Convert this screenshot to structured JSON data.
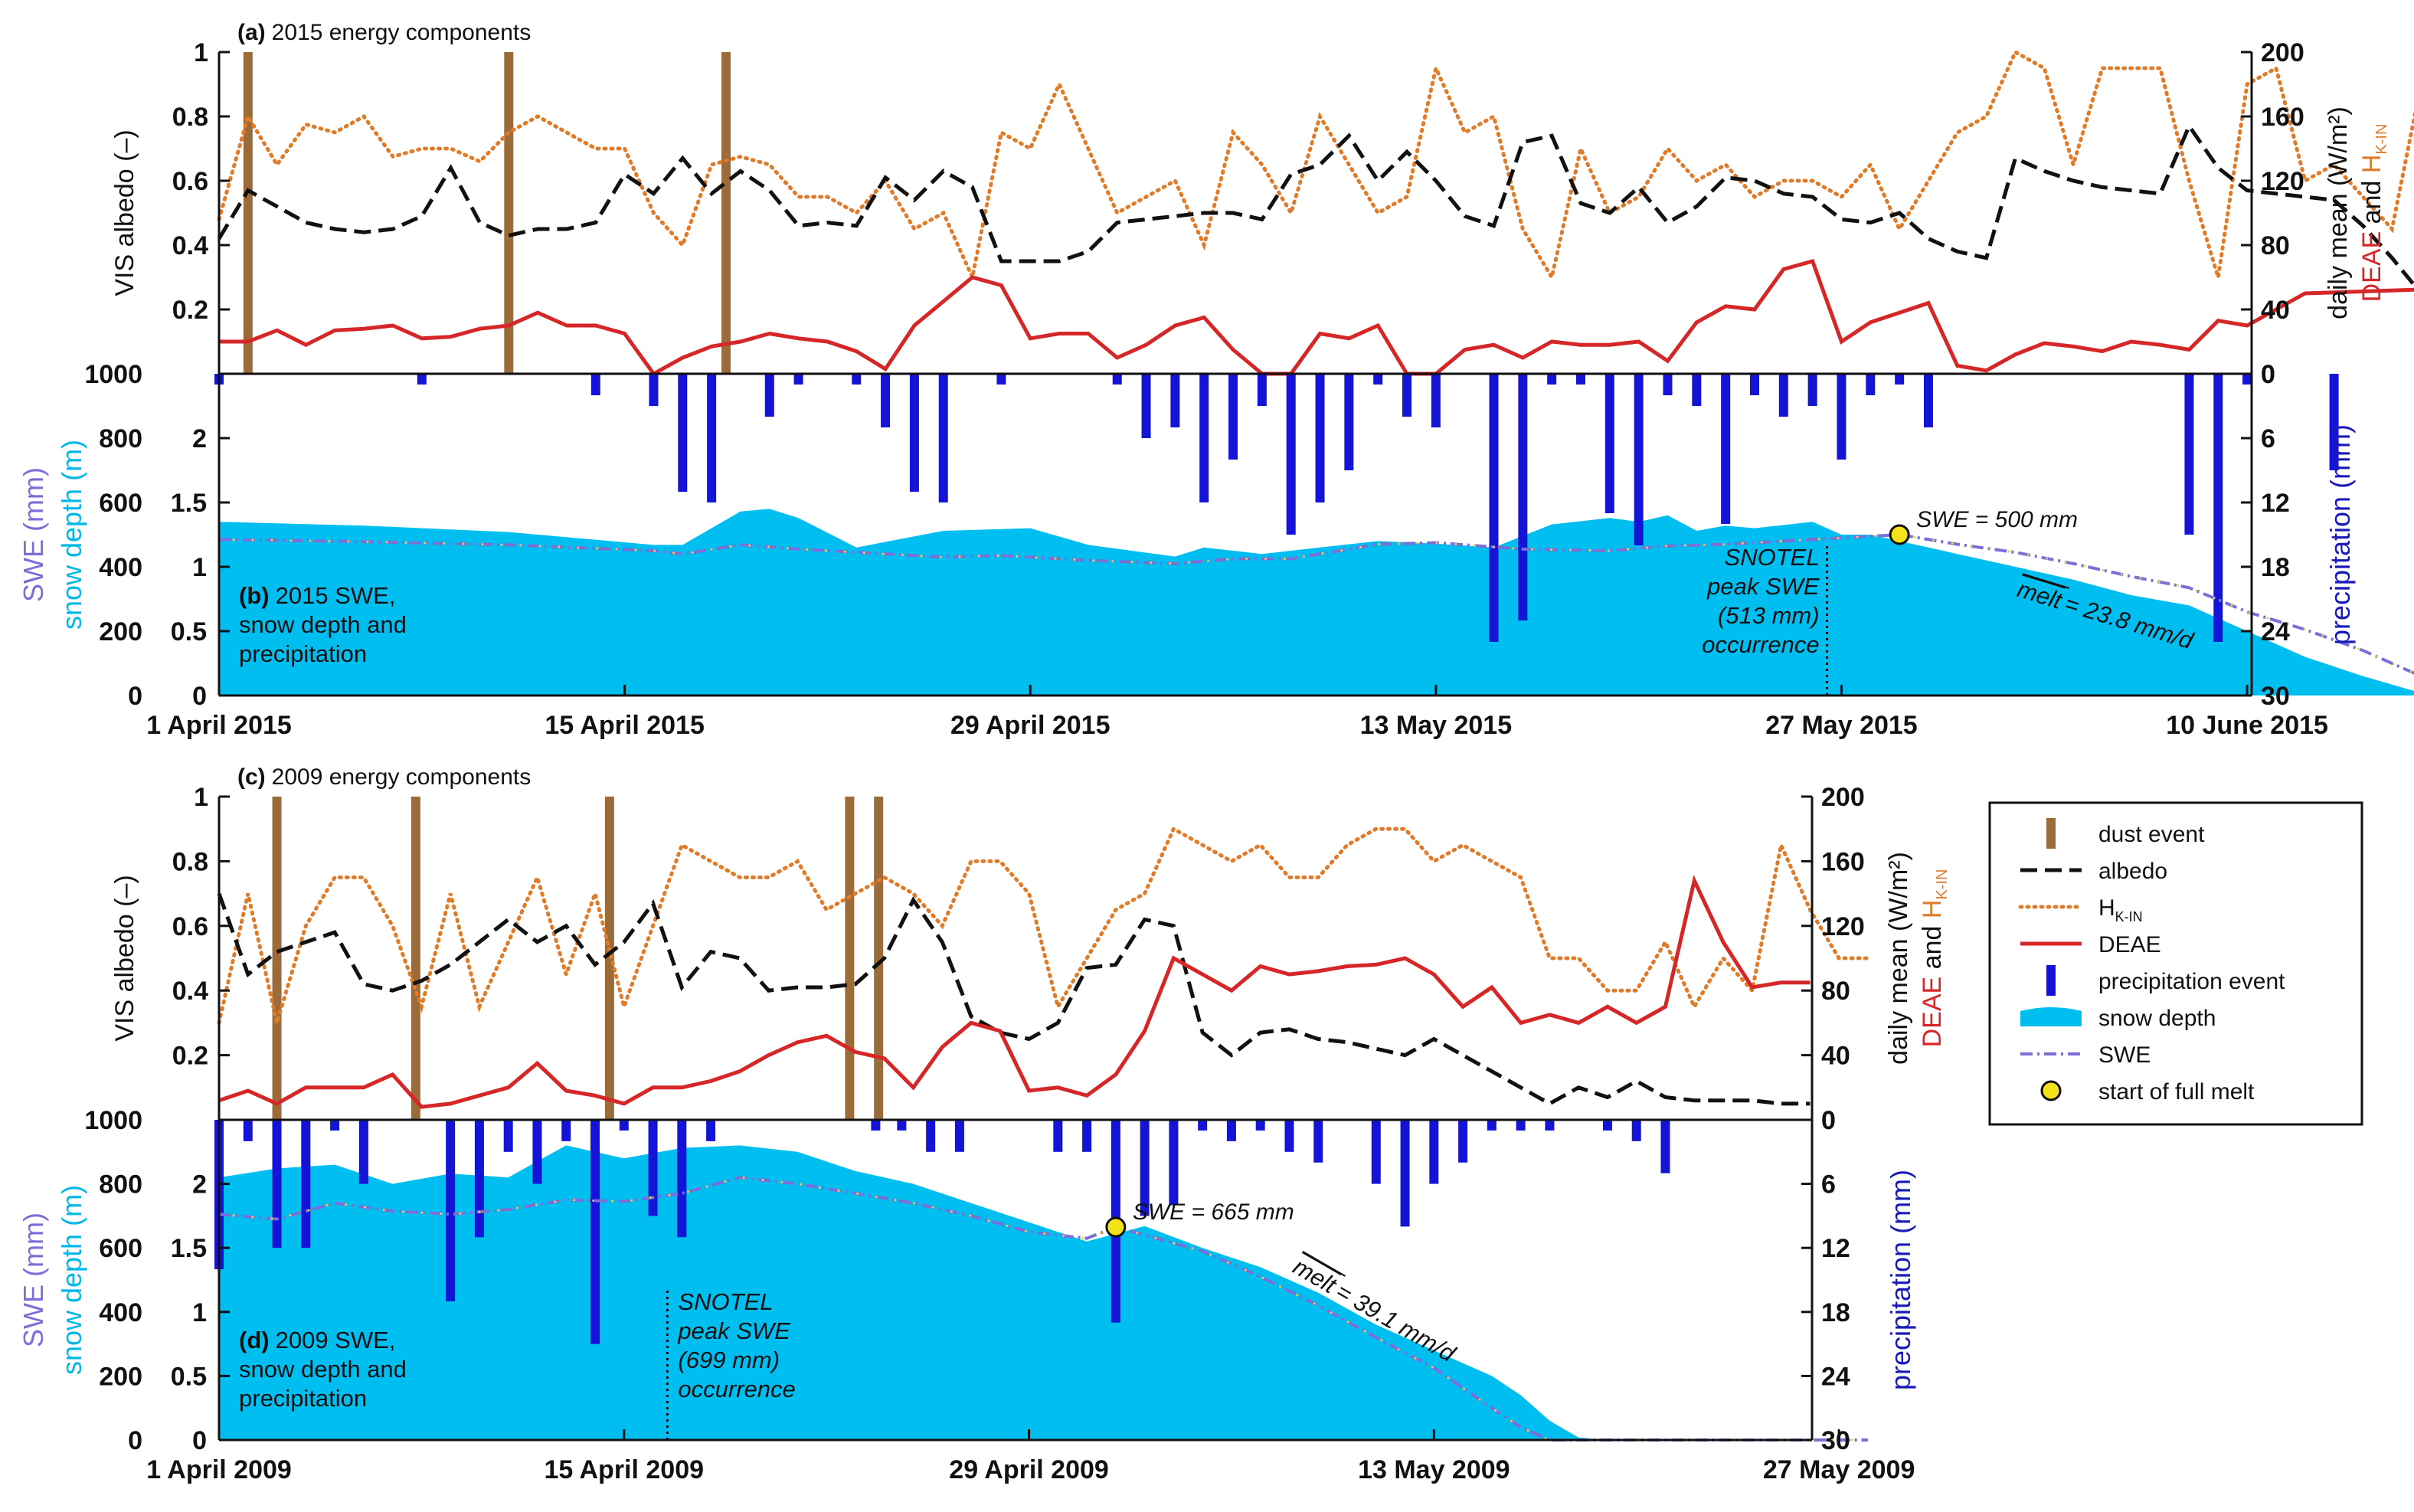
{
  "chart_data": [
    {
      "type": "line",
      "panel": "a",
      "title_letter": "(a)",
      "title": "2015 energy components",
      "ylabel_left": "VIS albedo (–)",
      "ylabel_right": "daily mean (W/m²)",
      "ylabel_right2_parts": [
        "DEAE",
        " and ",
        "H",
        "K-IN"
      ],
      "ylim_left": [
        0,
        1
      ],
      "ylim_right": [
        0,
        200
      ],
      "yticks_left": [
        "0",
        "0.2",
        "0.4",
        "0.6",
        "0.8",
        "1"
      ],
      "yticks_right": [
        "0",
        "40",
        "80",
        "120",
        "160",
        "200"
      ],
      "day_range": [
        0,
        77
      ],
      "dust_days": [
        1,
        10,
        17.5
      ],
      "albedo": [
        0.42,
        0.57,
        0.52,
        0.47,
        0.45,
        0.44,
        0.45,
        0.49,
        0.64,
        0.47,
        0.43,
        0.45,
        0.45,
        0.47,
        0.62,
        0.56,
        0.67,
        0.56,
        0.63,
        0.57,
        0.46,
        0.47,
        0.46,
        0.61,
        0.54,
        0.63,
        0.58,
        0.35,
        0.35,
        0.35,
        0.38,
        0.47,
        0.48,
        0.49,
        0.5,
        0.5,
        0.48,
        0.62,
        0.65,
        0.74,
        0.6,
        0.69,
        0.6,
        0.49,
        0.46,
        0.72,
        0.74,
        0.53,
        0.5,
        0.58,
        0.47,
        0.52,
        0.61,
        0.6,
        0.56,
        0.55,
        0.48,
        0.47,
        0.5,
        0.42,
        0.38,
        0.36,
        0.67,
        0.63,
        0.6,
        0.58,
        0.57,
        0.56,
        0.77,
        0.64,
        0.57,
        0.56,
        0.55,
        0.54,
        0.46,
        0.36,
        0.25,
        0.24
      ],
      "hkin": [
        96,
        160,
        130,
        155,
        150,
        160,
        135,
        140,
        140,
        132,
        150,
        160,
        150,
        140,
        140,
        100,
        80,
        130,
        135,
        130,
        110,
        110,
        100,
        120,
        90,
        100,
        60,
        150,
        140,
        180,
        140,
        100,
        110,
        120,
        80,
        150,
        130,
        100,
        160,
        130,
        100,
        110,
        190,
        150,
        160,
        90,
        60,
        140,
        100,
        110,
        140,
        120,
        130,
        110,
        120,
        120,
        110,
        130,
        90,
        120,
        150,
        160,
        200,
        190,
        130,
        190,
        190,
        190,
        120,
        60,
        180,
        190,
        120,
        130,
        110,
        90,
        180,
        125,
        140
      ],
      "deae": [
        20,
        20,
        27,
        18,
        27,
        28,
        30,
        22,
        23,
        28,
        30,
        38,
        30,
        30,
        25,
        0,
        10,
        17,
        20,
        25,
        22,
        20,
        14,
        3,
        30,
        45,
        60,
        55,
        22,
        25,
        25,
        10,
        18,
        30,
        35,
        15,
        0,
        0,
        25,
        22,
        30,
        0,
        0,
        15,
        18,
        10,
        20,
        18,
        18,
        20,
        8,
        32,
        42,
        40,
        65,
        70,
        20,
        32,
        38,
        44,
        5,
        2,
        12,
        19,
        17,
        14,
        20,
        18,
        15,
        33,
        30,
        40,
        50,
        53
      ],
      "deae_days": [
        0,
        1,
        2,
        3,
        4,
        5,
        6,
        7,
        8,
        9,
        10,
        11,
        12,
        13,
        14,
        15,
        16,
        17,
        18,
        19,
        20,
        21,
        22,
        23,
        24,
        25,
        26,
        27,
        28,
        29,
        30,
        31,
        32,
        33,
        34,
        35,
        36,
        37,
        38,
        39,
        40,
        41,
        42,
        43,
        44,
        45,
        46,
        47,
        48,
        49,
        50,
        51,
        52,
        53,
        54,
        55,
        56,
        57,
        58,
        59,
        60,
        61,
        62,
        63,
        64,
        65,
        66,
        67,
        68,
        69,
        70,
        71,
        72,
        77
      ]
    },
    {
      "type": "area",
      "panel": "b",
      "caption_letter": "(b)",
      "caption_lines": [
        "2015 SWE,",
        "snow depth and",
        "precipitation"
      ],
      "ylabel_swe": "SWE (mm)",
      "ylabel_depth": "snow depth (m)",
      "ylabel_precip": "precipitation (mm)",
      "ylim_swe": [
        0,
        1000
      ],
      "ylim_depth": [
        0,
        2.5
      ],
      "ylim_precip": [
        30,
        0
      ],
      "yticks_swe": [
        "0",
        "200",
        "400",
        "600",
        "800",
        "1000"
      ],
      "yticks_depth": [
        "0",
        "0.5",
        "1",
        "1.5",
        "2"
      ],
      "yticks_precip": [
        "0",
        "6",
        "12",
        "18",
        "24",
        "30"
      ],
      "xticks": [
        "1 April 2015",
        "15 April 2015",
        "29 April 2015",
        "13 May 2015",
        "27 May 2015",
        "10 June 2015"
      ],
      "xtick_days": [
        0,
        14,
        28,
        42,
        56,
        70
      ],
      "snow_depth_days": [
        0,
        5,
        10,
        15,
        16,
        18,
        19,
        20,
        22,
        25,
        28,
        30,
        33,
        34,
        36,
        38,
        40,
        42,
        44,
        46,
        48,
        49,
        50,
        51,
        52,
        53,
        55,
        56,
        57,
        58,
        60,
        62,
        64,
        66,
        68,
        70,
        72,
        74,
        76,
        77
      ],
      "snow_depth_m": [
        1.35,
        1.32,
        1.27,
        1.17,
        1.17,
        1.43,
        1.45,
        1.38,
        1.15,
        1.28,
        1.3,
        1.17,
        1.08,
        1.15,
        1.1,
        1.15,
        1.2,
        1.18,
        1.15,
        1.33,
        1.38,
        1.35,
        1.4,
        1.28,
        1.32,
        1.3,
        1.35,
        1.25,
        1.25,
        1.2,
        1.1,
        1.0,
        0.9,
        0.78,
        0.7,
        0.5,
        0.3,
        0.15,
        0.02,
        0.0
      ],
      "swe_days": [
        0,
        5,
        10,
        15,
        16,
        18,
        20,
        22,
        25,
        27,
        30,
        33,
        35,
        37,
        40,
        42,
        45,
        48,
        50,
        52,
        54,
        56,
        57,
        58,
        60,
        62,
        64,
        66,
        68,
        70,
        72,
        74,
        76,
        77
      ],
      "swe_mm": [
        485,
        478,
        468,
        450,
        440,
        468,
        455,
        445,
        430,
        435,
        420,
        410,
        425,
        425,
        470,
        475,
        455,
        450,
        465,
        470,
        480,
        490,
        495,
        500,
        470,
        445,
        410,
        370,
        335,
        260,
        205,
        140,
        60,
        0
      ],
      "precip_days": [
        0,
        7,
        13,
        15,
        16,
        17,
        19,
        20,
        22,
        23,
        24,
        25,
        27,
        31,
        32,
        33,
        34,
        35,
        36,
        37,
        38,
        39,
        40,
        41,
        42,
        44,
        45,
        46,
        47,
        48,
        49,
        50,
        51,
        52,
        53,
        54,
        55,
        56,
        57,
        58,
        59,
        68,
        69,
        70,
        73,
        78
      ],
      "precip_mm": [
        1,
        1,
        2,
        3,
        11,
        12,
        4,
        1,
        1,
        5,
        11,
        12,
        1,
        1,
        6,
        5,
        12,
        8,
        3,
        15,
        12,
        9,
        1,
        4,
        5,
        25,
        23,
        1,
        1,
        13,
        16,
        2,
        3,
        14,
        2,
        4,
        3,
        8,
        2,
        1,
        5,
        15,
        25,
        1,
        9,
        2
      ],
      "swe_marker_day": 58,
      "swe_marker_value": 500,
      "swe_marker_label": "SWE = 500 mm",
      "peak_day": 55.5,
      "peak_lines": [
        "SNOTEL",
        "peak SWE",
        "(513 mm)",
        "occurrence"
      ],
      "melt_label": "melt",
      "melt_value": "= 23.8 mm/d"
    },
    {
      "type": "line",
      "panel": "c",
      "title_letter": "(c)",
      "title": "2009 energy components",
      "ylabel_left": "VIS albedo (–)",
      "ylabel_right": "daily mean (W/m²)",
      "ylabel_right2_parts": [
        "DEAE",
        " and ",
        "H",
        "K-IN"
      ],
      "ylim_left": [
        0,
        1
      ],
      "ylim_right": [
        0,
        200
      ],
      "yticks_left": [
        "0",
        "0.2",
        "0.4",
        "0.6",
        "0.8",
        "1"
      ],
      "yticks_right": [
        "0",
        "40",
        "80",
        "120",
        "160",
        "200"
      ],
      "day_range": [
        0,
        57
      ],
      "dust_days": [
        2,
        6.8,
        13.5,
        21.8,
        22.8
      ],
      "albedo": [
        0.7,
        0.45,
        0.52,
        0.55,
        0.58,
        0.42,
        0.4,
        0.43,
        0.48,
        0.55,
        0.62,
        0.55,
        0.6,
        0.48,
        0.55,
        0.67,
        0.41,
        0.52,
        0.5,
        0.4,
        0.41,
        0.41,
        0.42,
        0.5,
        0.68,
        0.55,
        0.32,
        0.27,
        0.25,
        0.3,
        0.47,
        0.48,
        0.62,
        0.6,
        0.27,
        0.2,
        0.27,
        0.28,
        0.25,
        0.24,
        0.22,
        0.2,
        0.25,
        0.2,
        0.15,
        0.1,
        0.05,
        0.1,
        0.07,
        0.12,
        0.07,
        0.06,
        0.06,
        0.06,
        0.05,
        0.05
      ],
      "hkin": [
        60,
        140,
        60,
        120,
        150,
        150,
        120,
        70,
        140,
        70,
        110,
        150,
        90,
        140,
        70,
        120,
        170,
        160,
        150,
        150,
        160,
        130,
        140,
        150,
        140,
        120,
        160,
        160,
        140,
        70,
        100,
        130,
        140,
        180,
        170,
        160,
        170,
        150,
        150,
        170,
        180,
        180,
        160,
        170,
        160,
        150,
        100,
        100,
        80,
        80,
        110,
        70,
        100,
        80,
        170,
        130,
        100,
        100
      ],
      "deae": [
        12,
        18,
        10,
        20,
        20,
        20,
        28,
        8,
        10,
        15,
        20,
        35,
        18,
        15,
        10,
        20,
        20,
        24,
        30,
        40,
        48,
        52,
        42,
        38,
        20,
        45,
        60,
        55,
        18,
        20,
        15,
        28,
        55,
        100,
        90,
        80,
        95,
        90,
        92,
        95,
        96,
        100,
        90,
        70,
        82,
        60,
        65,
        60,
        70,
        60,
        70,
        148,
        110,
        82,
        85,
        85
      ],
      "deae_days": [
        0,
        1,
        2,
        3,
        4,
        5,
        6,
        7,
        8,
        9,
        10,
        11,
        12,
        13,
        14,
        15,
        16,
        17,
        18,
        19,
        20,
        21,
        22,
        23,
        24,
        25,
        26,
        27,
        28,
        29,
        30,
        31,
        32,
        33,
        34,
        35,
        36,
        37,
        38,
        39,
        40,
        41,
        42,
        43,
        44,
        45,
        46,
        47,
        48,
        49,
        50,
        51,
        52,
        53,
        54,
        55
      ]
    },
    {
      "type": "area",
      "panel": "d",
      "caption_letter": "(d)",
      "caption_lines": [
        "2009 SWE,",
        "snow depth and",
        "precipitation"
      ],
      "ylabel_swe": "SWE (mm)",
      "ylabel_depth": "snow depth (m)",
      "ylabel_precip": "precipitation (mm)",
      "ylim_swe": [
        0,
        1000
      ],
      "ylim_depth": [
        0,
        2.5
      ],
      "ylim_precip": [
        30,
        0
      ],
      "yticks_swe": [
        "0",
        "200",
        "400",
        "600",
        "800",
        "1000"
      ],
      "yticks_depth": [
        "0",
        "0.5",
        "1",
        "1.5",
        "2"
      ],
      "yticks_precip": [
        "0",
        "6",
        "12",
        "18",
        "24",
        "30"
      ],
      "xticks": [
        "1 April 2009",
        "15 April 2009",
        "29 April 2009",
        "13 May 2009",
        "27 May 2009"
      ],
      "xtick_days": [
        0,
        14,
        28,
        42,
        56
      ],
      "snow_depth_days": [
        0,
        2,
        4,
        6,
        8,
        10,
        12,
        14,
        16,
        18,
        20,
        22,
        24,
        26,
        28,
        30,
        32,
        34,
        36,
        38,
        40,
        42,
        44,
        45,
        46,
        47,
        48,
        57
      ],
      "snow_depth_m": [
        2.05,
        2.12,
        2.15,
        2.0,
        2.08,
        2.05,
        2.3,
        2.2,
        2.28,
        2.3,
        2.25,
        2.1,
        2.0,
        1.85,
        1.7,
        1.55,
        1.67,
        1.5,
        1.35,
        1.15,
        0.9,
        0.7,
        0.5,
        0.35,
        0.15,
        0.02,
        0.0,
        0.0
      ],
      "swe_days": [
        0,
        2,
        4,
        6,
        8,
        10,
        12,
        14,
        16,
        18,
        20,
        22,
        24,
        26,
        28,
        30,
        31,
        32,
        34,
        36,
        38,
        40,
        42,
        44,
        45,
        46,
        47,
        48,
        57
      ],
      "swe_mm": [
        705,
        690,
        740,
        715,
        705,
        720,
        750,
        745,
        770,
        820,
        800,
        770,
        740,
        700,
        650,
        630,
        665,
        640,
        590,
        510,
        420,
        320,
        225,
        100,
        40,
        0,
        0,
        0,
        0
      ],
      "precip_days": [
        0,
        1,
        2,
        3,
        4,
        5,
        8,
        9,
        10,
        11,
        12,
        13,
        14,
        15,
        16,
        17,
        29,
        30,
        31,
        32,
        33,
        34,
        35,
        36,
        37,
        38,
        40,
        41,
        42,
        43,
        44,
        45,
        46,
        48,
        49,
        50
      ],
      "precip_mm": [
        14,
        2,
        12,
        12,
        1,
        6,
        17,
        11,
        3,
        6,
        2,
        21,
        1,
        9,
        11,
        2,
        3,
        3,
        19,
        9,
        8,
        1,
        2,
        1,
        3,
        4,
        6,
        10,
        6,
        4,
        1,
        1,
        1,
        1,
        2,
        5
      ],
      "precip_days_2": [
        22.7,
        23.6,
        24.6,
        25.6
      ],
      "precip_mm_2": [
        1,
        1,
        3,
        3
      ],
      "swe_marker_day": 31,
      "swe_marker_value": 665,
      "swe_marker_label": "SWE = 665 mm",
      "peak_day": 15.5,
      "peak_lines": [
        "SNOTEL",
        "peak SWE",
        "(699 mm)",
        "occurrence"
      ],
      "melt_label": "melt",
      "melt_value": "= 39.1 mm/d"
    }
  ],
  "legend": {
    "items": [
      {
        "key": "dust",
        "label": "dust event"
      },
      {
        "key": "albedo",
        "label": "albedo"
      },
      {
        "key": "hkin",
        "label": "H",
        "sub": "K-IN"
      },
      {
        "key": "deae",
        "label": "DEAE"
      },
      {
        "key": "precip",
        "label": "precipitation event"
      },
      {
        "key": "depth",
        "label": "snow depth"
      },
      {
        "key": "swe",
        "label": "SWE"
      },
      {
        "key": "marker",
        "label": "start of full melt"
      }
    ]
  },
  "colors": {
    "dust": "#9b6b3a",
    "albedo": "#111111",
    "hkin": "#e07b2a",
    "deae": "#d62728",
    "precip": "#1414d6",
    "snow": "#00bff0",
    "swe": "#7a6fd8",
    "swe_dot": "#e8d34a",
    "marker": "#f4e21a",
    "axis": "#111111",
    "depth_label": "#00b7e8",
    "swe_label": "#7a6fd8",
    "precip_label": "#1a1ab8"
  }
}
